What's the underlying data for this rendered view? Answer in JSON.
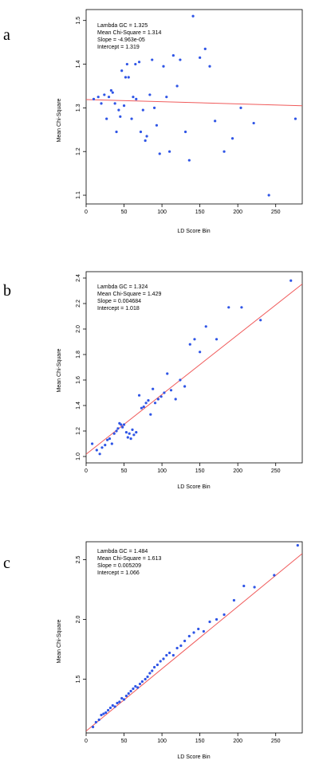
{
  "chart_data": [
    {
      "type": "scatter",
      "panel_label": "a",
      "xlabel": "LD Score Bin",
      "ylabel": "Mean Chi-Square",
      "xlim": [
        0,
        285
      ],
      "ylim": [
        1.08,
        1.525
      ],
      "xticks": [
        0,
        50,
        100,
        150,
        200,
        250
      ],
      "yticks": [
        1.1,
        1.2,
        1.3,
        1.4,
        1.5
      ],
      "ytick_decimals": 1,
      "annotations": [
        "Lambda GC = 1.325",
        "Mean Chi-Square = 1.314",
        "Slope = -4.963e-05",
        "Intercept = 1.319"
      ],
      "regression": {
        "slope": -4.963e-05,
        "intercept": 1.319
      },
      "colors": {
        "points": "#2f55e6",
        "line": "#f05a5a",
        "frame": "#000000"
      },
      "points": [
        [
          10,
          1.32
        ],
        [
          16,
          1.325
        ],
        [
          20,
          1.31
        ],
        [
          24,
          1.33
        ],
        [
          27,
          1.275
        ],
        [
          30,
          1.325
        ],
        [
          33,
          1.34
        ],
        [
          35,
          1.335
        ],
        [
          38,
          1.31
        ],
        [
          40,
          1.245
        ],
        [
          43,
          1.295
        ],
        [
          45,
          1.28
        ],
        [
          47,
          1.385
        ],
        [
          50,
          1.305
        ],
        [
          52,
          1.37
        ],
        [
          54,
          1.4
        ],
        [
          56,
          1.37
        ],
        [
          60,
          1.275
        ],
        [
          62,
          1.325
        ],
        [
          65,
          1.4
        ],
        [
          66,
          1.32
        ],
        [
          70,
          1.405
        ],
        [
          72,
          1.245
        ],
        [
          75,
          1.295
        ],
        [
          78,
          1.225
        ],
        [
          80,
          1.235
        ],
        [
          84,
          1.33
        ],
        [
          87,
          1.41
        ],
        [
          90,
          1.3
        ],
        [
          93,
          1.26
        ],
        [
          97,
          1.195
        ],
        [
          102,
          1.395
        ],
        [
          106,
          1.325
        ],
        [
          110,
          1.2
        ],
        [
          115,
          1.42
        ],
        [
          120,
          1.35
        ],
        [
          124,
          1.41
        ],
        [
          131,
          1.245
        ],
        [
          136,
          1.18
        ],
        [
          141,
          1.51
        ],
        [
          150,
          1.415
        ],
        [
          157,
          1.435
        ],
        [
          163,
          1.395
        ],
        [
          170,
          1.27
        ],
        [
          182,
          1.2
        ],
        [
          193,
          1.23
        ],
        [
          204,
          1.3
        ],
        [
          221,
          1.265
        ],
        [
          241,
          1.1
        ],
        [
          276,
          1.275
        ]
      ]
    },
    {
      "type": "scatter",
      "panel_label": "b",
      "xlabel": "LD Score Bin",
      "ylabel": "Mean Chi-Square",
      "xlim": [
        0,
        285
      ],
      "ylim": [
        0.95,
        2.45
      ],
      "xticks": [
        0,
        50,
        100,
        150,
        200,
        250
      ],
      "yticks": [
        1.0,
        1.2,
        1.4,
        1.6,
        1.8,
        2.0,
        2.2,
        2.4
      ],
      "ytick_decimals": 1,
      "annotations": [
        "Lambda GC = 1.324",
        "Mean Chi-Square = 1.429",
        "Slope = 0.004684",
        "Intercept = 1.018"
      ],
      "regression": {
        "slope": 0.004684,
        "intercept": 1.018
      },
      "colors": {
        "points": "#2f55e6",
        "line": "#f05a5a",
        "frame": "#000000"
      },
      "points": [
        [
          8,
          1.1
        ],
        [
          14,
          1.05
        ],
        [
          18,
          1.02
        ],
        [
          21,
          1.07
        ],
        [
          25,
          1.09
        ],
        [
          28,
          1.13
        ],
        [
          31,
          1.14
        ],
        [
          34,
          1.1
        ],
        [
          37,
          1.18
        ],
        [
          40,
          1.2
        ],
        [
          42,
          1.22
        ],
        [
          44,
          1.26
        ],
        [
          46,
          1.25
        ],
        [
          48,
          1.23
        ],
        [
          50,
          1.25
        ],
        [
          53,
          1.19
        ],
        [
          55,
          1.15
        ],
        [
          57,
          1.18
        ],
        [
          59,
          1.14
        ],
        [
          61,
          1.21
        ],
        [
          63,
          1.17
        ],
        [
          66,
          1.19
        ],
        [
          70,
          1.48
        ],
        [
          73,
          1.38
        ],
        [
          76,
          1.39
        ],
        [
          79,
          1.42
        ],
        [
          82,
          1.44
        ],
        [
          85,
          1.33
        ],
        [
          88,
          1.53
        ],
        [
          91,
          1.42
        ],
        [
          95,
          1.45
        ],
        [
          99,
          1.47
        ],
        [
          103,
          1.5
        ],
        [
          107,
          1.65
        ],
        [
          112,
          1.52
        ],
        [
          118,
          1.45
        ],
        [
          124,
          1.6
        ],
        [
          130,
          1.55
        ],
        [
          137,
          1.88
        ],
        [
          143,
          1.92
        ],
        [
          150,
          1.82
        ],
        [
          158,
          2.02
        ],
        [
          172,
          1.92
        ],
        [
          188,
          2.17
        ],
        [
          205,
          2.17
        ],
        [
          230,
          2.07
        ],
        [
          270,
          2.38
        ]
      ]
    },
    {
      "type": "scatter",
      "panel_label": "c",
      "xlabel": "LD Score Bin",
      "ylabel": "Mean Chi-Square",
      "xlim": [
        0,
        285
      ],
      "ylim": [
        1.05,
        2.65
      ],
      "xticks": [
        0,
        50,
        100,
        150,
        200,
        250
      ],
      "yticks": [
        1.5,
        2.0,
        2.5
      ],
      "ytick_decimals": 1,
      "annotations": [
        "Lambda GC = 1.484",
        "Mean Chi-Square = 1.613",
        "Slope = 0.005209",
        "Intercept = 1.066"
      ],
      "regression": {
        "slope": 0.005209,
        "intercept": 1.066
      },
      "colors": {
        "points": "#2f55e6",
        "line": "#f05a5a",
        "frame": "#000000"
      },
      "points": [
        [
          9,
          1.1
        ],
        [
          13,
          1.14
        ],
        [
          17,
          1.16
        ],
        [
          20,
          1.2
        ],
        [
          23,
          1.21
        ],
        [
          26,
          1.22
        ],
        [
          29,
          1.24
        ],
        [
          32,
          1.26
        ],
        [
          35,
          1.28
        ],
        [
          38,
          1.27
        ],
        [
          41,
          1.3
        ],
        [
          44,
          1.31
        ],
        [
          47,
          1.34
        ],
        [
          50,
          1.33
        ],
        [
          53,
          1.36
        ],
        [
          56,
          1.38
        ],
        [
          59,
          1.4
        ],
        [
          62,
          1.42
        ],
        [
          65,
          1.44
        ],
        [
          68,
          1.43
        ],
        [
          71,
          1.46
        ],
        [
          74,
          1.48
        ],
        [
          78,
          1.5
        ],
        [
          81,
          1.52
        ],
        [
          84,
          1.55
        ],
        [
          87,
          1.57
        ],
        [
          90,
          1.6
        ],
        [
          94,
          1.62
        ],
        [
          98,
          1.65
        ],
        [
          102,
          1.67
        ],
        [
          106,
          1.7
        ],
        [
          110,
          1.72
        ],
        [
          115,
          1.7
        ],
        [
          120,
          1.76
        ],
        [
          125,
          1.78
        ],
        [
          130,
          1.82
        ],
        [
          136,
          1.86
        ],
        [
          142,
          1.89
        ],
        [
          148,
          1.92
        ],
        [
          155,
          1.9
        ],
        [
          163,
          1.98
        ],
        [
          172,
          2.0
        ],
        [
          182,
          2.04
        ],
        [
          195,
          2.16
        ],
        [
          208,
          2.28
        ],
        [
          222,
          2.27
        ],
        [
          248,
          2.37
        ],
        [
          279,
          2.62
        ]
      ]
    }
  ]
}
